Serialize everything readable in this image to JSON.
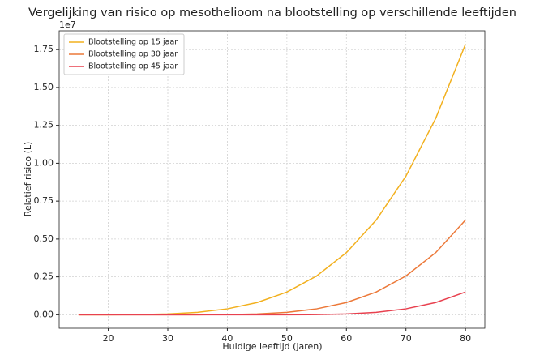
{
  "chart_data": {
    "type": "line",
    "title": "Vergelijking van risico op mesothelioom na blootstelling op verschillende leeftijden",
    "x_label": "Huidige leeftijd (jaren)",
    "y_label": "Relatief risico (L)",
    "y_offset_label": "1e7",
    "x": [
      15,
      20,
      25,
      30,
      35,
      40,
      45,
      50,
      55,
      60,
      65,
      70,
      75,
      80
    ],
    "series": [
      {
        "name": "Blootstelling op 15 jaar",
        "color": "#f2b01e",
        "values": [
          0,
          6.25e-05,
          0.001,
          0.0050625,
          0.016,
          0.0390625,
          0.081,
          0.1500625,
          0.256,
          0.4100625,
          0.625,
          0.9150625,
          1.296,
          1.7850625
        ]
      },
      {
        "name": "Blootstelling op 30 jaar",
        "color": "#ec7838",
        "values": [
          0,
          0,
          0,
          0,
          6.25e-05,
          0.001,
          0.0050625,
          0.016,
          0.0390625,
          0.081,
          0.1500625,
          0.256,
          0.4100625,
          0.625
        ]
      },
      {
        "name": "Blootstelling op 45 jaar",
        "color": "#e8414f",
        "values": [
          0,
          0,
          0,
          0,
          0,
          0,
          0,
          6.25e-05,
          0.001,
          0.0050625,
          0.016,
          0.0390625,
          0.081,
          0.1500625
        ]
      }
    ],
    "xlim": [
      11.75,
      83.25
    ],
    "xticks": [
      20,
      30,
      40,
      50,
      60,
      70,
      80
    ],
    "ylim": [
      -0.089,
      1.874
    ],
    "yticks": [
      {
        "value": 0,
        "label": "0.00"
      },
      0.25,
      {
        "value": 0.5,
        "label": "0.50"
      },
      0.75,
      {
        "value": 1,
        "label": "1.00"
      },
      1.25,
      {
        "value": 1.5,
        "label": "1.50"
      },
      1.75
    ],
    "grid": true,
    "legend": "upper-left"
  }
}
